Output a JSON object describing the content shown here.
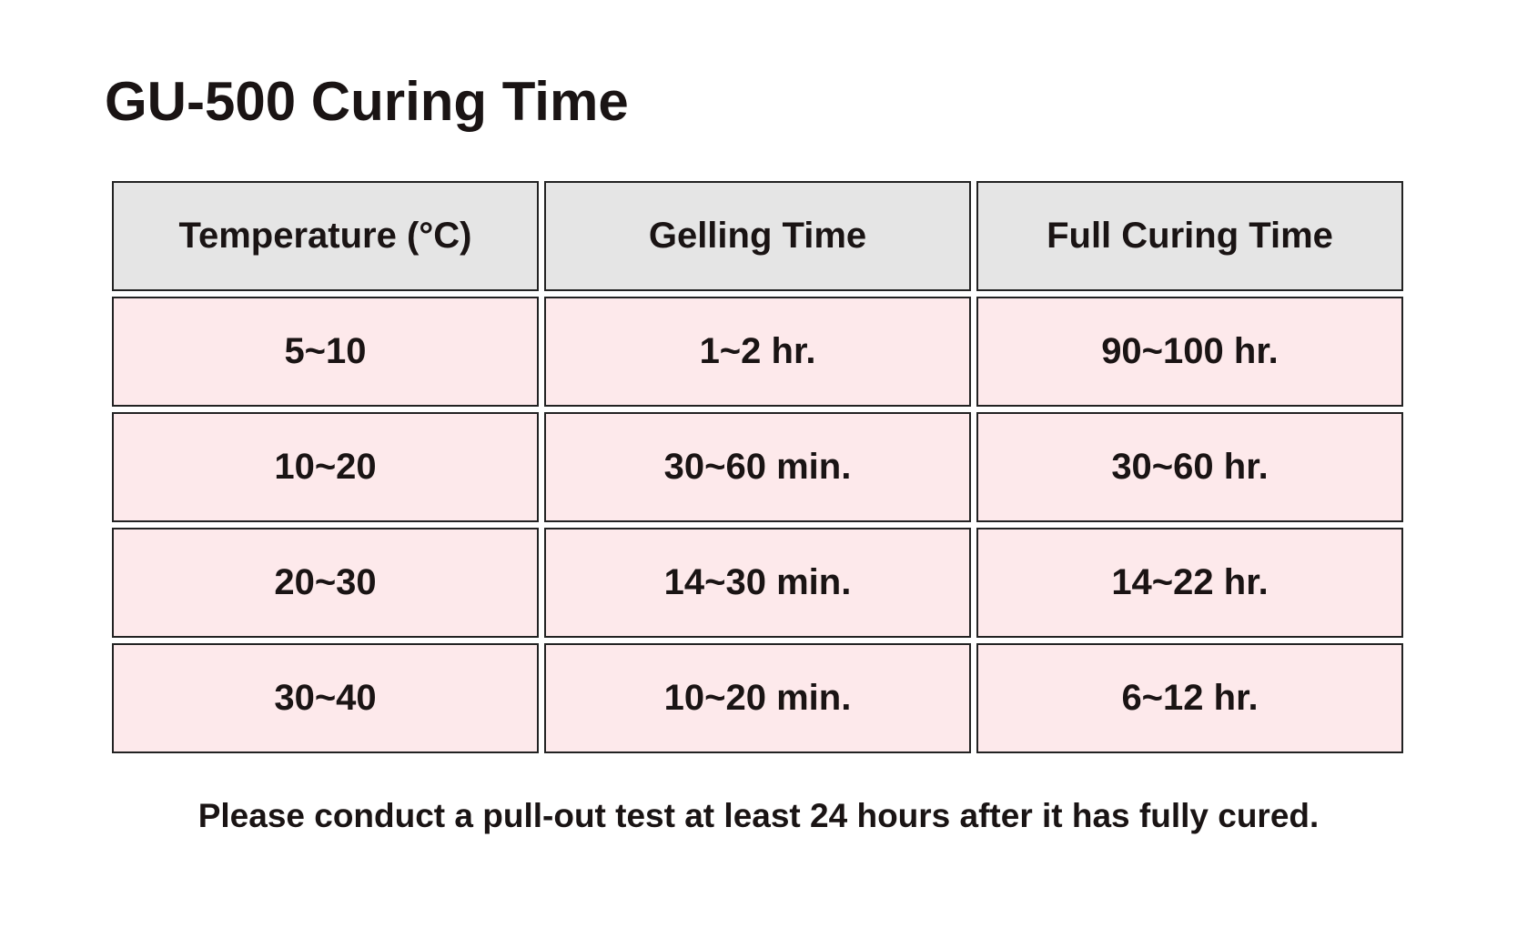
{
  "header": {
    "title": "GU-500 Curing Time"
  },
  "table": {
    "columns": [
      "Temperature (°C)",
      "Gelling Time",
      "Full Curing Time"
    ],
    "rows": [
      [
        "5~10",
        "1~2 hr.",
        "90~100 hr."
      ],
      [
        "10~20",
        "30~60 min.",
        "30~60 hr."
      ],
      [
        "20~30",
        "14~30 min.",
        "14~22 hr."
      ],
      [
        "30~40",
        "10~20 min.",
        "6~12 hr."
      ]
    ]
  },
  "footer": {
    "note": "Please conduct a pull-out test at least 24 hours after it has fully cured."
  }
}
